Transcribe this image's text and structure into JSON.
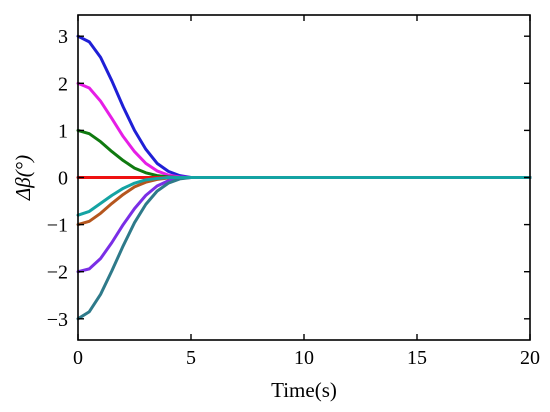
{
  "chart_data": {
    "type": "line",
    "title": "",
    "xlabel": "Time(s)",
    "ylabel": "Δβ(°)",
    "xlim": [
      0,
      20
    ],
    "ylim": [
      -3.45,
      3.45
    ],
    "xticks": [
      0,
      5,
      10,
      15,
      20
    ],
    "yticks": [
      3,
      2,
      1,
      0,
      -1,
      -2,
      -3
    ],
    "grid": false,
    "legend": "none",
    "x": [
      0,
      0.5,
      1,
      1.5,
      2,
      2.5,
      3,
      3.5,
      4,
      4.5,
      5,
      6,
      8,
      10,
      15,
      20
    ],
    "series": [
      {
        "color": "#1f1fd6",
        "values": [
          3.0,
          2.88,
          2.55,
          2.05,
          1.5,
          1.0,
          0.6,
          0.3,
          0.13,
          0.04,
          0.0,
          0.0,
          0.0,
          0.0,
          0.0,
          0.0
        ]
      },
      {
        "color": "#e61ee6",
        "values": [
          2.0,
          1.9,
          1.62,
          1.25,
          0.87,
          0.55,
          0.3,
          0.14,
          0.05,
          0.01,
          0.0,
          0.0,
          0.0,
          0.0,
          0.0,
          0.0
        ]
      },
      {
        "color": "#0f7a0f",
        "values": [
          1.0,
          0.93,
          0.76,
          0.55,
          0.36,
          0.2,
          0.1,
          0.04,
          0.01,
          0.0,
          0.0,
          0.0,
          0.0,
          0.0,
          0.0,
          0.0
        ]
      },
      {
        "color": "#ee1111",
        "values": [
          0,
          0,
          0,
          0,
          0,
          0,
          0,
          0,
          0,
          0,
          0,
          0,
          0,
          0,
          0,
          0
        ]
      },
      {
        "color": "#b5561e",
        "values": [
          -1.0,
          -0.93,
          -0.76,
          -0.55,
          -0.36,
          -0.2,
          -0.1,
          -0.04,
          -0.01,
          0.0,
          0.0,
          0.0,
          0.0,
          0.0,
          0.0,
          0.0
        ]
      },
      {
        "color": "#7a2ee6",
        "values": [
          -2.0,
          -1.94,
          -1.72,
          -1.38,
          -1.0,
          -0.66,
          -0.38,
          -0.18,
          -0.07,
          -0.02,
          0.0,
          0.0,
          0.0,
          0.0,
          0.0,
          0.0
        ]
      },
      {
        "color": "#2e7a8a",
        "values": [
          -3.0,
          -2.85,
          -2.48,
          -1.98,
          -1.45,
          -0.96,
          -0.57,
          -0.29,
          -0.12,
          -0.03,
          0.0,
          0.0,
          0.0,
          0.0,
          0.0,
          0.0
        ]
      },
      {
        "color": "#14a3a3",
        "values": [
          -0.8,
          -0.72,
          -0.55,
          -0.38,
          -0.23,
          -0.12,
          -0.05,
          -0.02,
          0.0,
          0.0,
          0.0,
          0.0,
          0.0,
          0.0,
          0.0,
          0.0
        ]
      }
    ]
  }
}
